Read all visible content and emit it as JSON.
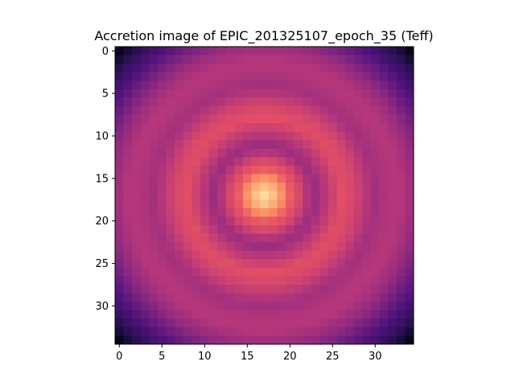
{
  "chart_data": {
    "type": "heatmap",
    "title": "Accretion image of EPIC_201325107_epoch_35 (Teff)",
    "colormap": "magma",
    "grid": false,
    "grid_size": 35,
    "xlim": [
      -0.5,
      34.5
    ],
    "ylim": [
      34.5,
      -0.5
    ],
    "xticks": [
      0,
      5,
      10,
      15,
      20,
      25,
      30
    ],
    "yticks": [
      0,
      5,
      10,
      15,
      20,
      25,
      30
    ],
    "center": [
      17,
      17
    ],
    "radial_profile": [
      [
        0.0,
        0.93
      ],
      [
        1.0,
        0.88
      ],
      [
        2.0,
        0.78
      ],
      [
        3.0,
        0.66
      ],
      [
        4.0,
        0.6
      ],
      [
        5.0,
        0.5
      ],
      [
        6.0,
        0.44
      ],
      [
        7.0,
        0.5
      ],
      [
        8.0,
        0.56
      ],
      [
        9.0,
        0.62
      ],
      [
        10.0,
        0.6
      ],
      [
        11.0,
        0.56
      ],
      [
        12.0,
        0.5
      ],
      [
        13.0,
        0.46
      ],
      [
        14.0,
        0.48
      ],
      [
        15.0,
        0.5
      ],
      [
        16.0,
        0.5
      ],
      [
        17.0,
        0.46
      ],
      [
        18.0,
        0.42
      ],
      [
        19.0,
        0.36
      ],
      [
        20.0,
        0.3
      ],
      [
        21.0,
        0.24
      ],
      [
        22.0,
        0.2
      ],
      [
        23.0,
        0.14
      ],
      [
        24.0,
        0.05
      ]
    ]
  }
}
